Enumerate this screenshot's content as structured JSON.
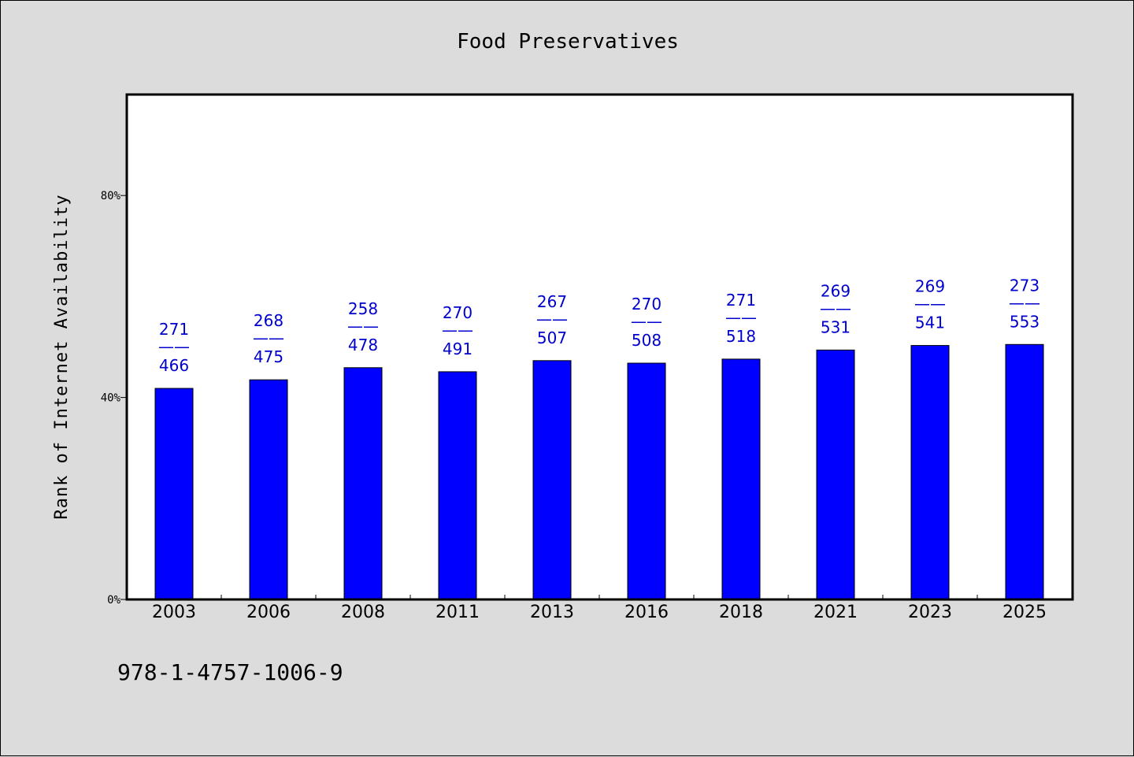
{
  "chart_data": {
    "type": "bar",
    "title": "Food Preservatives",
    "xlabel": "",
    "ylabel": "Rank of Internet Availability",
    "categories": [
      "2003",
      "2006",
      "2008",
      "2011",
      "2013",
      "2016",
      "2018",
      "2021",
      "2023",
      "2025"
    ],
    "series": [
      {
        "values": [
          41.8,
          43.5,
          45.9,
          45.1,
          47.3,
          46.8,
          47.6,
          49.4,
          50.3,
          50.5
        ],
        "labels_top": [
          "271",
          "268",
          "258",
          "270",
          "267",
          "270",
          "271",
          "269",
          "269",
          "273"
        ],
        "labels_bottom": [
          "466",
          "475",
          "478",
          "491",
          "507",
          "508",
          "518",
          "531",
          "541",
          "553"
        ],
        "label_separator": "——"
      }
    ],
    "ylim": [
      0,
      100
    ],
    "yticks": [
      0,
      40,
      80
    ],
    "ytick_labels": [
      "0%",
      "40%",
      "80%"
    ],
    "grid": false,
    "bar_color": "#0000ff",
    "label_color": "#0000cc"
  },
  "footer": {
    "isbn": "978-1-4757-1006-9"
  }
}
